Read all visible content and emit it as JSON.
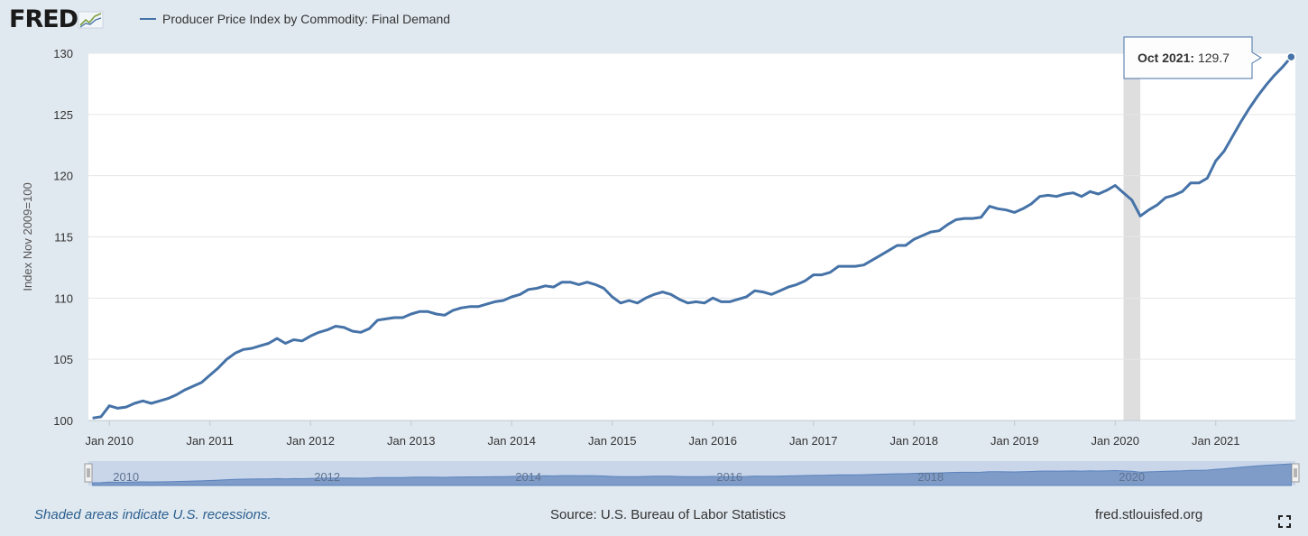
{
  "logo_text": "FRED",
  "legend": {
    "series_name": "Producer Price Index by Commodity: Final Demand",
    "color": "#4572a7"
  },
  "tooltip": {
    "label": "Oct 2021:",
    "value": "129.7"
  },
  "footer": {
    "note": "Shaded areas indicate U.S. recessions.",
    "source": "Source: U.S. Bureau of Labor Statistics",
    "site": "fred.stlouisfed.org"
  },
  "icons": {
    "logo_graph": "line-chart-icon",
    "fullscreen": "expand-icon"
  },
  "colors": {
    "line": "#4572a7",
    "recession": "#dedede",
    "navigator": "#7f9cc8",
    "background": "#e1e9f0"
  },
  "chart_data": {
    "type": "line",
    "title": "",
    "xlabel": "",
    "ylabel": "Index Nov 2009=100",
    "ylim": [
      100,
      130
    ],
    "yticks": [
      "100",
      "105",
      "110",
      "115",
      "120",
      "125",
      "130"
    ],
    "xticks": [
      "Jan 2010",
      "Jan 2011",
      "Jan 2012",
      "Jan 2013",
      "Jan 2014",
      "Jan 2015",
      "Jan 2016",
      "Jan 2017",
      "Jan 2018",
      "Jan 2019",
      "Jan 2020",
      "Jan 2021"
    ],
    "navigator_labels": [
      "2010",
      "2012",
      "2014",
      "2016",
      "2018",
      "2020"
    ],
    "start": "2009-11",
    "recession": {
      "start": "2020-02",
      "end": "2020-04"
    },
    "series": [
      {
        "name": "Producer Price Index by Commodity: Final Demand",
        "values": [
          100.2,
          100.3,
          101.2,
          101.0,
          101.1,
          101.4,
          101.6,
          101.4,
          101.6,
          101.8,
          102.1,
          102.5,
          102.8,
          103.1,
          103.7,
          104.3,
          105.0,
          105.5,
          105.8,
          105.9,
          106.1,
          106.3,
          106.7,
          106.3,
          106.6,
          106.5,
          106.9,
          107.2,
          107.4,
          107.7,
          107.6,
          107.3,
          107.2,
          107.5,
          108.2,
          108.3,
          108.4,
          108.4,
          108.7,
          108.9,
          108.9,
          108.7,
          108.6,
          109.0,
          109.2,
          109.3,
          109.3,
          109.5,
          109.7,
          109.8,
          110.1,
          110.3,
          110.7,
          110.8,
          111.0,
          110.9,
          111.3,
          111.3,
          111.1,
          111.3,
          111.1,
          110.8,
          110.1,
          109.6,
          109.8,
          109.6,
          110.0,
          110.3,
          110.5,
          110.3,
          109.9,
          109.6,
          109.7,
          109.6,
          110.0,
          109.7,
          109.7,
          109.9,
          110.1,
          110.6,
          110.5,
          110.3,
          110.6,
          110.9,
          111.1,
          111.4,
          111.9,
          111.9,
          112.1,
          112.6,
          112.6,
          112.6,
          112.7,
          113.1,
          113.5,
          113.9,
          114.3,
          114.3,
          114.8,
          115.1,
          115.4,
          115.5,
          116.0,
          116.4,
          116.5,
          116.5,
          116.6,
          117.5,
          117.3,
          117.2,
          117.0,
          117.3,
          117.7,
          118.3,
          118.4,
          118.3,
          118.5,
          118.6,
          118.3,
          118.7,
          118.5,
          118.8,
          119.2,
          118.6,
          118.0,
          116.7,
          117.2,
          117.6,
          118.2,
          118.4,
          118.7,
          119.4,
          119.4,
          119.8,
          121.2,
          122.0,
          123.2,
          124.4,
          125.5,
          126.5,
          127.4,
          128.2,
          128.9,
          129.7
        ]
      }
    ]
  }
}
